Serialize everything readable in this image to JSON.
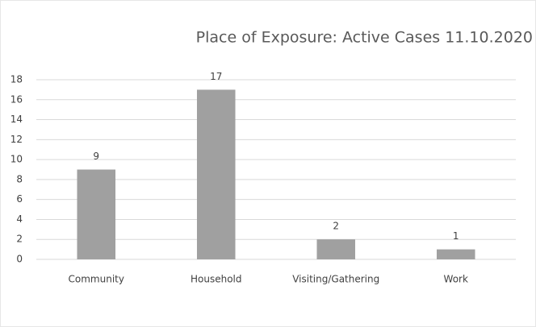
{
  "chart_data": {
    "type": "bar",
    "title": "Place of Exposure: Active Cases 11.10.2020",
    "categories": [
      "Community",
      "Household",
      "Visiting/Gathering",
      "Work"
    ],
    "values": [
      9,
      17,
      2,
      1
    ],
    "color": "#a0a0a0",
    "ylim": [
      0,
      18
    ],
    "yticks": [
      0,
      2,
      4,
      6,
      8,
      10,
      12,
      14,
      16,
      18
    ],
    "grid": true,
    "data_labels": true
  }
}
